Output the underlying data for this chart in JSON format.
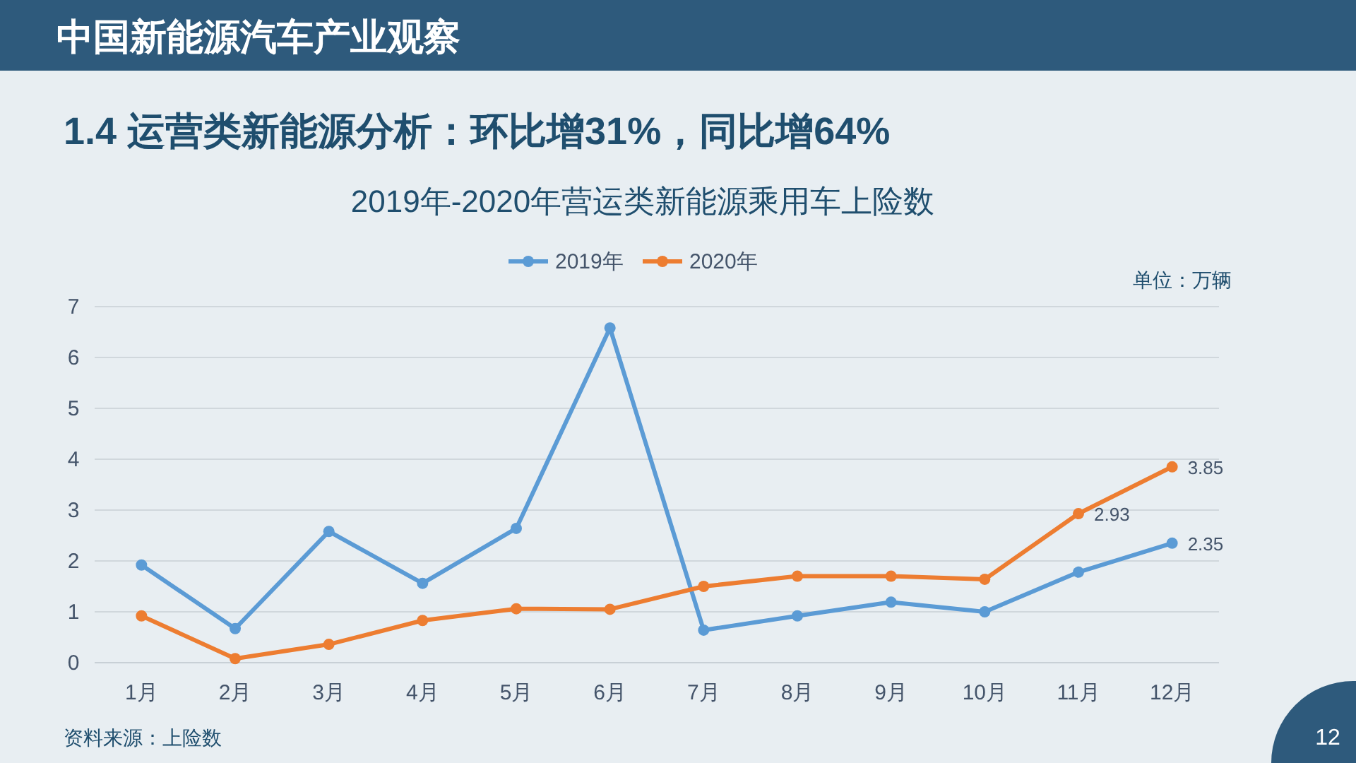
{
  "chart_data": {
    "type": "line",
    "title": "2019年-2020年营运类新能源乘用车上险数",
    "categories": [
      "1月",
      "2月",
      "3月",
      "4月",
      "5月",
      "6月",
      "7月",
      "8月",
      "9月",
      "10月",
      "11月",
      "12月"
    ],
    "series": [
      {
        "name": "2019年",
        "color": "#5b9bd5",
        "values": [
          1.92,
          0.67,
          2.58,
          1.56,
          2.64,
          6.58,
          0.64,
          0.92,
          1.19,
          1.0,
          1.78,
          2.35
        ],
        "value_labels": [
          null,
          null,
          null,
          null,
          null,
          null,
          null,
          null,
          null,
          null,
          null,
          "2.35"
        ]
      },
      {
        "name": "2020年",
        "color": "#ed7d31",
        "values": [
          0.92,
          0.08,
          0.36,
          0.83,
          1.06,
          1.05,
          1.5,
          1.7,
          1.7,
          1.64,
          2.93,
          3.85
        ],
        "value_labels": [
          null,
          null,
          null,
          null,
          null,
          null,
          null,
          null,
          null,
          null,
          "2.93",
          "3.85"
        ]
      }
    ],
    "ylim": [
      0,
      7
    ],
    "yticks": [
      0,
      1,
      2,
      3,
      4,
      5,
      6,
      7
    ],
    "grid": "y",
    "legend": "top",
    "marker": "circle",
    "line_style": "solid",
    "annotations": [
      "中国新能源汽车产业观察",
      "1.4 运营类新能源分析：环比增31%，同比增64%",
      "单位：万辆",
      "资料来源：上险数",
      "12"
    ]
  }
}
